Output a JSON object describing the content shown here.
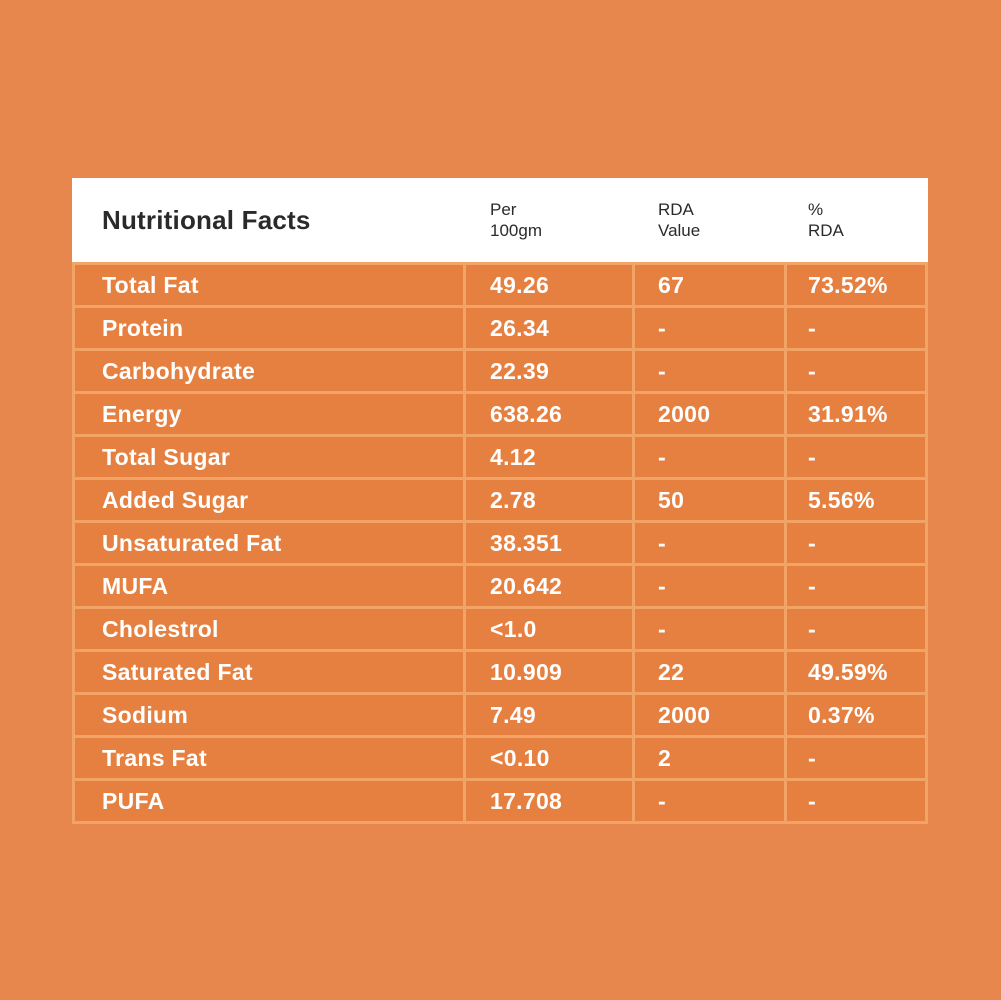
{
  "colors": {
    "page_bg": "#E8874D",
    "header_bg": "#FFFFFF",
    "header_text": "#2A2A2A",
    "cell_bg": "#E68040",
    "grid_border": "#F2A467",
    "row_text": "#FFFFFF"
  },
  "table": {
    "column_headers": [
      [
        "Per",
        "100gm"
      ],
      [
        "RDA",
        "Value"
      ],
      [
        "%",
        "RDA"
      ]
    ]
  },
  "chart_data": {
    "type": "table",
    "title": "Nutritional Facts",
    "columns": [
      "Per 100gm",
      "RDA Value",
      "% RDA"
    ],
    "rows": [
      {
        "label": "Total Fat",
        "per_100gm": "49.26",
        "rda_value": "67",
        "pct_rda": "73.52%"
      },
      {
        "label": "Protein",
        "per_100gm": "26.34",
        "rda_value": "-",
        "pct_rda": "-"
      },
      {
        "label": "Carbohydrate",
        "per_100gm": "22.39",
        "rda_value": "-",
        "pct_rda": "-"
      },
      {
        "label": "Energy",
        "per_100gm": "638.26",
        "rda_value": "2000",
        "pct_rda": "31.91%"
      },
      {
        "label": "Total Sugar",
        "per_100gm": "4.12",
        "rda_value": "-",
        "pct_rda": "-"
      },
      {
        "label": "Added Sugar",
        "per_100gm": "2.78",
        "rda_value": "50",
        "pct_rda": "5.56%"
      },
      {
        "label": "Unsaturated Fat",
        "per_100gm": "38.351",
        "rda_value": "-",
        "pct_rda": "-"
      },
      {
        "label": "MUFA",
        "per_100gm": "20.642",
        "rda_value": "-",
        "pct_rda": "-"
      },
      {
        "label": "Cholestrol",
        "per_100gm": "<1.0",
        "rda_value": "-",
        "pct_rda": "-"
      },
      {
        "label": "Saturated Fat",
        "per_100gm": "10.909",
        "rda_value": "22",
        "pct_rda": "49.59%"
      },
      {
        "label": "Sodium",
        "per_100gm": "7.49",
        "rda_value": "2000",
        "pct_rda": "0.37%"
      },
      {
        "label": "Trans Fat",
        "per_100gm": "<0.10",
        "rda_value": "2",
        "pct_rda": "-"
      },
      {
        "label": "PUFA",
        "per_100gm": "17.708",
        "rda_value": "-",
        "pct_rda": "-"
      }
    ]
  }
}
